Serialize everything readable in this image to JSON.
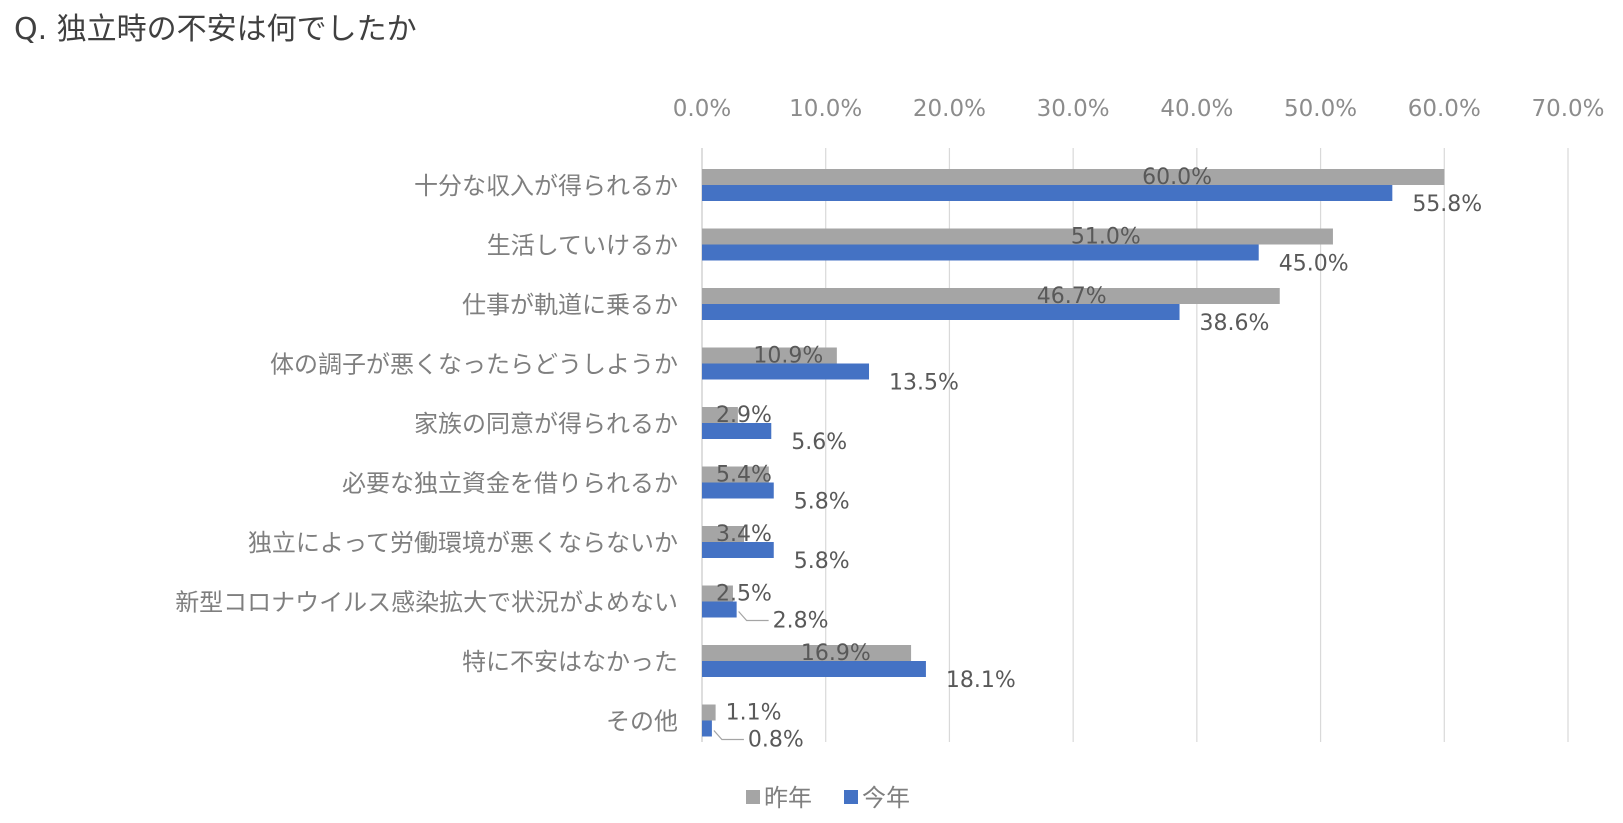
{
  "title": "Q. 独立時の不安は何でしたか",
  "chart_data": {
    "type": "bar",
    "orientation": "horizontal",
    "title": "Q. 独立時の不安は何でしたか",
    "categories": [
      "十分な収入が得られるか",
      "生活していけるか",
      "仕事が軌道に乗るか",
      "体の調子が悪くなったらどうしようか",
      "家族の同意が得られるか",
      "必要な独立資金を借りられるか",
      "独立によって労働環境が悪くならないか",
      "新型コロナウイルス感染拡大で状況がよめない",
      "特に不安はなかった",
      "その他"
    ],
    "series": [
      {
        "name": "昨年",
        "color": "#a5a5a5",
        "values": [
          60.0,
          51.0,
          46.7,
          10.9,
          2.9,
          5.4,
          3.4,
          2.5,
          16.9,
          1.1
        ],
        "labels": [
          "60.0%",
          "51.0%",
          "46.7%",
          "10.9%",
          "2.9%",
          "5.4%",
          "3.4%",
          "2.5%",
          "16.9%",
          "1.1%"
        ]
      },
      {
        "name": "今年",
        "color": "#4472c4",
        "values": [
          55.8,
          45.0,
          38.6,
          13.5,
          5.6,
          5.8,
          5.8,
          2.8,
          18.1,
          0.8
        ],
        "labels": [
          "55.8%",
          "45.0%",
          "38.6%",
          "13.5%",
          "5.6%",
          "5.8%",
          "5.8%",
          "2.8%",
          "18.1%",
          "0.8%"
        ]
      }
    ],
    "xlim": [
      0,
      70
    ],
    "xticks": [
      0,
      10,
      20,
      30,
      40,
      50,
      60,
      70
    ],
    "xtick_labels": [
      "0.0%",
      "10.0%",
      "20.0%",
      "30.0%",
      "40.0%",
      "50.0%",
      "60.0%",
      "70.0%"
    ],
    "x_axis_position": "top",
    "grid": true,
    "legend_position": "bottom"
  }
}
